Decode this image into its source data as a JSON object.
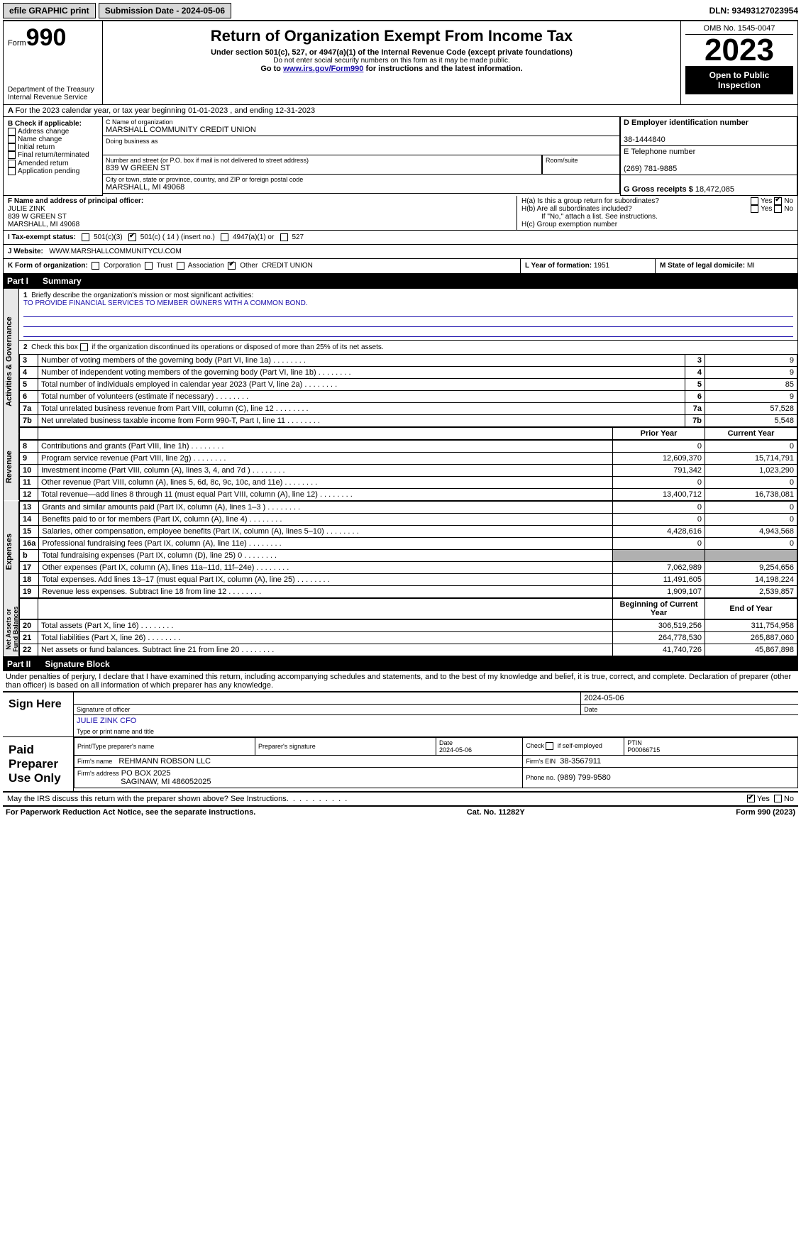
{
  "top": {
    "efile": "efile GRAPHIC print",
    "submission_label": "Submission Date - 2024-05-06",
    "dln_label": "DLN: 93493127023954"
  },
  "header": {
    "form_prefix": "Form",
    "form_number": "990",
    "dept": "Department of the Treasury\nInternal Revenue Service",
    "title": "Return of Organization Exempt From Income Tax",
    "sub1": "Under section 501(c), 527, or 4947(a)(1) of the Internal Revenue Code (except private foundations)",
    "sub2": "Do not enter social security numbers on this form as it may be made public.",
    "sub3_pre": "Go to ",
    "sub3_link": "www.irs.gov/Form990",
    "sub3_post": " for instructions and the latest information.",
    "omb": "OMB No. 1545-0047",
    "year": "2023",
    "open": "Open to Public Inspection"
  },
  "lineA": "For the 2023 calendar year, or tax year beginning 01-01-2023   , and ending 12-31-2023",
  "boxB": {
    "heading": "B Check if applicable:",
    "items": [
      "Address change",
      "Name change",
      "Initial return",
      "Final return/terminated",
      "Amended return",
      "Application pending"
    ]
  },
  "boxC": {
    "name_label": "C Name of organization",
    "name": "MARSHALL COMMUNITY CREDIT UNION",
    "dba_label": "Doing business as",
    "dba": "",
    "street_label": "Number and street (or P.O. box if mail is not delivered to street address)",
    "room_label": "Room/suite",
    "street": "839 W GREEN ST",
    "city_label": "City or town, state or province, country, and ZIP or foreign postal code",
    "city": "MARSHALL, MI  49068"
  },
  "boxD": {
    "label": "D Employer identification number",
    "value": "38-1444840"
  },
  "boxE": {
    "label": "E Telephone number",
    "value": "(269) 781-9885"
  },
  "boxG": {
    "label": "G Gross receipts $",
    "value": "18,472,085"
  },
  "boxF": {
    "label": "F  Name and address of principal officer:",
    "name": "JULIE ZINK",
    "street": "839 W GREEN ST",
    "city": "MARSHALL, MI  49068"
  },
  "boxH": {
    "a_label": "H(a)  Is this a group return for subordinates?",
    "a_no_checked": true,
    "b_label": "H(b)  Are all subordinates included?",
    "note": "If \"No,\" attach a list. See instructions.",
    "c_label": "H(c)  Group exemption number"
  },
  "boxI": {
    "label": "I   Tax-exempt status:",
    "opts": {
      "c3": "501(c)(3)",
      "c": "501(c) ( 14 ) (insert no.)",
      "a1": "4947(a)(1) or",
      "527": "527"
    },
    "c_checked": true
  },
  "boxJ": {
    "label": "J   Website:",
    "value": "WWW.MARSHALLCOMMUNITYCU.COM"
  },
  "boxK": {
    "label": "K Form of organization:",
    "opts": [
      "Corporation",
      "Trust",
      "Association",
      "Other"
    ],
    "other_checked": true,
    "other_value": "CREDIT UNION"
  },
  "boxL": {
    "label": "L Year of formation:",
    "value": "1951"
  },
  "boxM": {
    "label": "M State of legal domicile:",
    "value": "MI"
  },
  "partI": {
    "name": "Part I",
    "title": "Summary"
  },
  "summary": {
    "q1": "Briefly describe the organization's mission or most significant activities:",
    "mission": "TO PROVIDE FINANCIAL SERVICES TO MEMBER OWNERS WITH A COMMON BOND.",
    "q2": "Check this box      if the organization discontinued its operations or disposed of more than 25% of its net assets.",
    "governance": [
      {
        "n": "3",
        "t": "Number of voting members of the governing body (Part VI, line 1a)",
        "v": "9"
      },
      {
        "n": "4",
        "t": "Number of independent voting members of the governing body (Part VI, line 1b)",
        "v": "9"
      },
      {
        "n": "5",
        "t": "Total number of individuals employed in calendar year 2023 (Part V, line 2a)",
        "v": "85"
      },
      {
        "n": "6",
        "t": "Total number of volunteers (estimate if necessary)",
        "v": "9"
      },
      {
        "n": "7a",
        "t": "Total unrelated business revenue from Part VIII, column (C), line 12",
        "v": "57,528"
      },
      {
        "n": "7b",
        "t": "Net unrelated business taxable income from Form 990-T, Part I, line 11",
        "v": "5,548"
      }
    ],
    "cols": {
      "prior": "Prior Year",
      "current": "Current Year"
    },
    "revenue": [
      {
        "n": "8",
        "t": "Contributions and grants (Part VIII, line 1h)",
        "p": "0",
        "c": "0"
      },
      {
        "n": "9",
        "t": "Program service revenue (Part VIII, line 2g)",
        "p": "12,609,370",
        "c": "15,714,791"
      },
      {
        "n": "10",
        "t": "Investment income (Part VIII, column (A), lines 3, 4, and 7d )",
        "p": "791,342",
        "c": "1,023,290"
      },
      {
        "n": "11",
        "t": "Other revenue (Part VIII, column (A), lines 5, 6d, 8c, 9c, 10c, and 11e)",
        "p": "0",
        "c": "0"
      },
      {
        "n": "12",
        "t": "Total revenue—add lines 8 through 11 (must equal Part VIII, column (A), line 12)",
        "p": "13,400,712",
        "c": "16,738,081"
      }
    ],
    "expenses": [
      {
        "n": "13",
        "t": "Grants and similar amounts paid (Part IX, column (A), lines 1–3 )",
        "p": "0",
        "c": "0"
      },
      {
        "n": "14",
        "t": "Benefits paid to or for members (Part IX, column (A), line 4)",
        "p": "0",
        "c": "0"
      },
      {
        "n": "15",
        "t": "Salaries, other compensation, employee benefits (Part IX, column (A), lines 5–10)",
        "p": "4,428,616",
        "c": "4,943,568"
      },
      {
        "n": "16a",
        "t": "Professional fundraising fees (Part IX, column (A), line 11e)",
        "p": "0",
        "c": "0"
      },
      {
        "n": "b",
        "t": "Total fundraising expenses (Part IX, column (D), line 25) 0",
        "p": "shade",
        "c": "shade"
      },
      {
        "n": "17",
        "t": "Other expenses (Part IX, column (A), lines 11a–11d, 11f–24e)",
        "p": "7,062,989",
        "c": "9,254,656"
      },
      {
        "n": "18",
        "t": "Total expenses. Add lines 13–17 (must equal Part IX, column (A), line 25)",
        "p": "11,491,605",
        "c": "14,198,224"
      },
      {
        "n": "19",
        "t": "Revenue less expenses. Subtract line 18 from line 12",
        "p": "1,909,107",
        "c": "2,539,857"
      }
    ],
    "cols2": {
      "begin": "Beginning of Current Year",
      "end": "End of Year"
    },
    "netassets": [
      {
        "n": "20",
        "t": "Total assets (Part X, line 16)",
        "p": "306,519,256",
        "c": "311,754,958"
      },
      {
        "n": "21",
        "t": "Total liabilities (Part X, line 26)",
        "p": "264,778,530",
        "c": "265,887,060"
      },
      {
        "n": "22",
        "t": "Net assets or fund balances. Subtract line 21 from line 20",
        "p": "41,740,726",
        "c": "45,867,898"
      }
    ],
    "vlabels": {
      "gov": "Activities & Governance",
      "rev": "Revenue",
      "exp": "Expenses",
      "na": "Net Assets or Fund Balances"
    }
  },
  "partII": {
    "name": "Part II",
    "title": "Signature Block"
  },
  "sig": {
    "perjury": "Under penalties of perjury, I declare that I have examined this return, including accompanying schedules and statements, and to the best of my knowledge and belief, it is true, correct, and complete. Declaration of preparer (other than officer) is based on all information of which preparer has any knowledge.",
    "sign_here": "Sign Here",
    "date_top": "2024-05-06",
    "sig_officer_label": "Signature of officer",
    "officer_name": "JULIE ZINK CFO",
    "type_label": "Type or print name and title",
    "date_label": "Date",
    "paid": "Paid Preparer Use Only",
    "prep_name_label": "Print/Type preparer's name",
    "prep_sig_label": "Preparer's signature",
    "prep_date": "2024-05-06",
    "self_emp": "Check        if self-employed",
    "ptin_label": "PTIN",
    "ptin": "P00066715",
    "firm_name_label": "Firm's name",
    "firm_name": "REHMANN ROBSON LLC",
    "firm_ein_label": "Firm's EIN",
    "firm_ein": "38-3567911",
    "firm_addr_label": "Firm's address",
    "firm_addr1": "PO BOX 2025",
    "firm_addr2": "SAGINAW, MI  486052025",
    "firm_phone_label": "Phone no.",
    "firm_phone": "(989) 799-9580",
    "discuss": "May the IRS discuss this return with the preparer shown above? See Instructions.",
    "discuss_yes": true
  },
  "footer": {
    "pra": "For Paperwork Reduction Act Notice, see the separate instructions.",
    "cat": "Cat. No. 11282Y",
    "form": "Form 990 (2023)"
  },
  "colors": {
    "link": "#1a0dab",
    "shade": "#b0b0b0",
    "vlabel_bg": "#e8e8e8"
  }
}
